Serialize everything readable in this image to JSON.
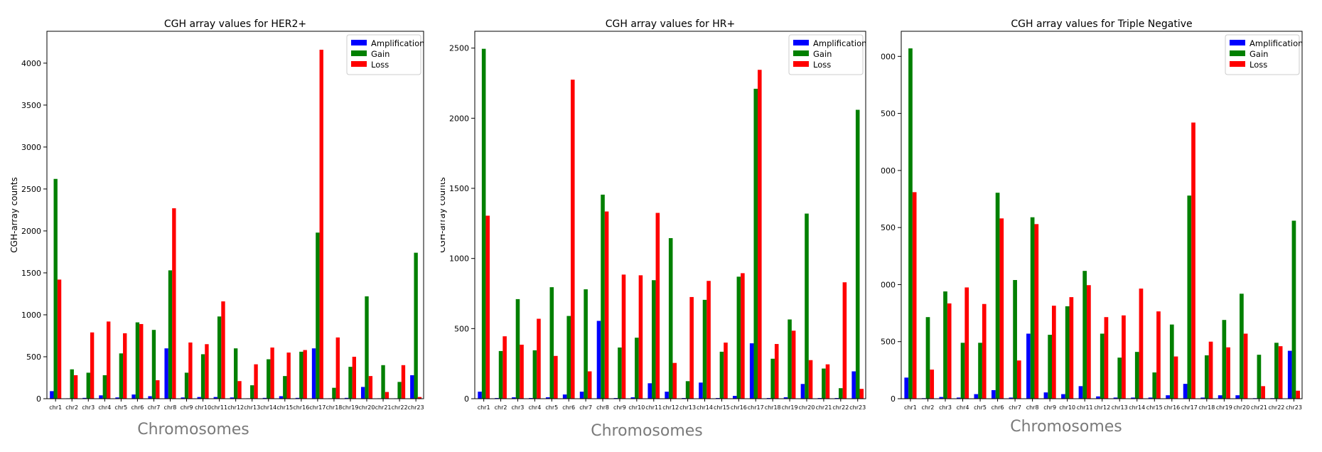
{
  "legend_labels": [
    "Amplification",
    "Gain",
    "Loss"
  ],
  "colors": {
    "amplification": "#0000ff",
    "gain": "#008000",
    "loss": "#ff0000"
  },
  "chart_data": [
    {
      "type": "bar",
      "title": "CGH array values for HER2+",
      "xlabel": "Chromosomes",
      "ylabel": "CGH-array counts",
      "ylim": [
        0,
        4380
      ],
      "yticks": [
        0,
        500,
        1000,
        1500,
        2000,
        2500,
        3000,
        3500,
        4000
      ],
      "legend_position": "top-right",
      "grid": false,
      "categories": [
        "chr1",
        "chr2",
        "chr3",
        "chr4",
        "chr5",
        "chr6",
        "chr7",
        "chr8",
        "chr9",
        "chr10",
        "chr11",
        "chr12",
        "chr13",
        "chr14",
        "chr15",
        "chr16",
        "chr17",
        "chr18",
        "chr19",
        "chr20",
        "chr21",
        "chr22",
        "chr23"
      ],
      "series": [
        {
          "name": "Amplification",
          "values": [
            90,
            5,
            10,
            40,
            15,
            50,
            30,
            600,
            15,
            20,
            20,
            15,
            5,
            10,
            30,
            10,
            600,
            5,
            10,
            140,
            5,
            5,
            280
          ]
        },
        {
          "name": "Gain",
          "values": [
            2620,
            350,
            310,
            280,
            540,
            910,
            820,
            1530,
            310,
            530,
            980,
            600,
            160,
            470,
            270,
            560,
            1980,
            130,
            380,
            1220,
            400,
            200,
            1740
          ]
        },
        {
          "name": "Loss",
          "values": [
            1420,
            280,
            790,
            920,
            780,
            890,
            220,
            2270,
            670,
            650,
            1160,
            210,
            410,
            610,
            550,
            580,
            4160,
            730,
            500,
            270,
            80,
            400,
            20
          ]
        }
      ]
    },
    {
      "type": "bar",
      "title": "CGH array values for HR+",
      "xlabel": "Chromosomes",
      "ylabel": "CGH-array counts",
      "ylim": [
        0,
        2620
      ],
      "yticks": [
        0,
        500,
        1000,
        1500,
        2000,
        2500
      ],
      "legend_position": "top-right",
      "grid": false,
      "categories": [
        "chr1",
        "chr2",
        "chr3",
        "chr4",
        "chr5",
        "chr6",
        "chr7",
        "chr8",
        "chr9",
        "chr10",
        "chr11",
        "chr12",
        "chr13",
        "chr14",
        "chr15",
        "chr16",
        "chr17",
        "chr18",
        "chr19",
        "chr20",
        "chr21",
        "chr22",
        "chr23"
      ],
      "series": [
        {
          "name": "Amplification",
          "values": [
            50,
            5,
            10,
            5,
            10,
            30,
            50,
            555,
            5,
            10,
            110,
            50,
            5,
            115,
            5,
            20,
            395,
            5,
            10,
            105,
            5,
            5,
            195
          ]
        },
        {
          "name": "Gain",
          "values": [
            2495,
            340,
            710,
            345,
            795,
            590,
            780,
            1455,
            365,
            435,
            845,
            1145,
            125,
            705,
            335,
            870,
            2210,
            285,
            565,
            1320,
            215,
            75,
            2060
          ]
        },
        {
          "name": "Loss",
          "values": [
            1305,
            445,
            385,
            570,
            305,
            2275,
            195,
            1335,
            885,
            880,
            1325,
            255,
            725,
            840,
            400,
            895,
            2345,
            390,
            485,
            275,
            245,
            830,
            70
          ]
        }
      ]
    },
    {
      "type": "bar",
      "title": "CGH array values for Triple Negative",
      "xlabel": "Chromosomes",
      "ylabel": "CGH-array counts",
      "ylim": [
        0,
        3220
      ],
      "yticks": [
        0,
        500,
        1000,
        1500,
        2000,
        2500,
        3000
      ],
      "legend_position": "top-right",
      "grid": false,
      "categories": [
        "chr1",
        "chr2",
        "chr3",
        "chr4",
        "chr5",
        "chr6",
        "chr7",
        "chr8",
        "chr9",
        "chr10",
        "chr11",
        "chr12",
        "chr13",
        "chr14",
        "chr15",
        "chr16",
        "chr17",
        "chr18",
        "chr19",
        "chr20",
        "chr21",
        "chr22",
        "chr23"
      ],
      "series": [
        {
          "name": "Amplification",
          "values": [
            185,
            5,
            15,
            10,
            40,
            75,
            10,
            570,
            55,
            40,
            110,
            20,
            10,
            10,
            10,
            30,
            130,
            10,
            30,
            30,
            5,
            5,
            420
          ]
        },
        {
          "name": "Gain",
          "values": [
            3070,
            715,
            940,
            490,
            490,
            1805,
            1040,
            1590,
            560,
            810,
            1120,
            570,
            360,
            410,
            230,
            650,
            1780,
            380,
            690,
            920,
            385,
            490,
            1560
          ]
        },
        {
          "name": "Loss",
          "values": [
            1810,
            255,
            835,
            975,
            830,
            1580,
            335,
            1530,
            815,
            890,
            995,
            715,
            730,
            965,
            765,
            370,
            2420,
            500,
            450,
            570,
            110,
            460,
            70
          ]
        }
      ]
    }
  ]
}
